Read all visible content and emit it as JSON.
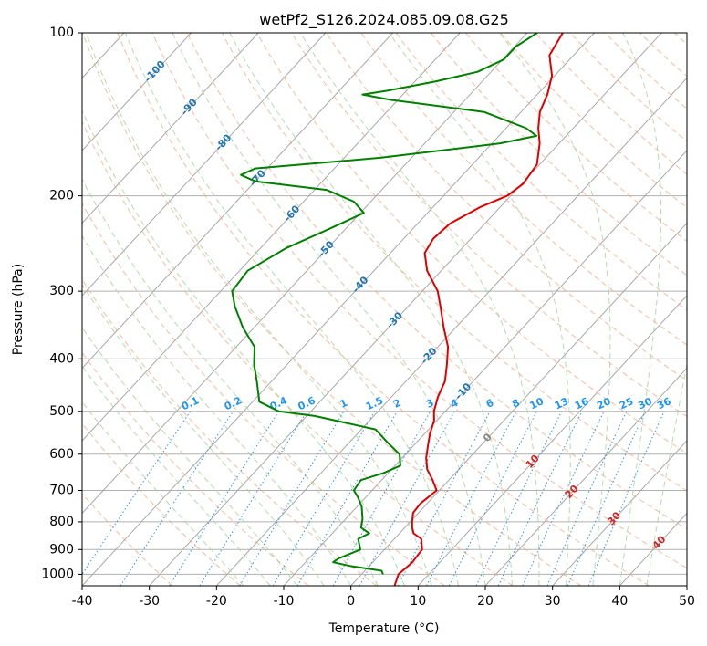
{
  "chart_data": {
    "type": "line",
    "subtype": "skew-t log-p diagram",
    "title": "wetPf2_S126.2024.085.09.08.G25",
    "xlabel": "Temperature (°C)",
    "ylabel": "Pressure (hPa)",
    "xlim": [
      -40,
      50
    ],
    "ylim_hPa": [
      1050,
      100
    ],
    "y_scale": "log",
    "grid": true,
    "x_ticks": [
      -40,
      -30,
      -20,
      -10,
      0,
      10,
      20,
      30,
      40,
      50
    ],
    "y_ticks": [
      100,
      200,
      300,
      400,
      500,
      600,
      700,
      800,
      900,
      1000
    ],
    "isotherm_labels": [
      "-100",
      "-90",
      "-80",
      "-70",
      "-60",
      "-50",
      "-40",
      "-30",
      "-20",
      "-10",
      "0",
      "10",
      "20",
      "30",
      "40"
    ],
    "mixing_ratio_labels": [
      "0.1",
      "0.2",
      "0.4",
      "0.6",
      "1",
      "1.5",
      "2",
      "3",
      "4",
      "6",
      "8",
      "10",
      "13",
      "16",
      "20",
      "25",
      "30",
      "36"
    ],
    "series": [
      {
        "role": "temperature",
        "color": "#e00000",
        "points": [
          [
            1050,
            6.5
          ],
          [
            1000,
            5.5
          ],
          [
            950,
            5.9
          ],
          [
            900,
            5.6
          ],
          [
            860,
            4.0
          ],
          [
            840,
            2.1
          ],
          [
            820,
            1.1
          ],
          [
            800,
            0.3
          ],
          [
            770,
            -0.8
          ],
          [
            740,
            -1.0
          ],
          [
            700,
            -0.4
          ],
          [
            670,
            -2.4
          ],
          [
            640,
            -4.7
          ],
          [
            610,
            -6.4
          ],
          [
            580,
            -7.8
          ],
          [
            550,
            -9.2
          ],
          [
            520,
            -10.4
          ],
          [
            500,
            -11.7
          ],
          [
            470,
            -13.1
          ],
          [
            440,
            -14.2
          ],
          [
            410,
            -16.2
          ],
          [
            380,
            -18.5
          ],
          [
            350,
            -21.8
          ],
          [
            320,
            -25.2
          ],
          [
            300,
            -27.7
          ],
          [
            275,
            -32.1
          ],
          [
            255,
            -34.9
          ],
          [
            240,
            -35.6
          ],
          [
            225,
            -35.2
          ],
          [
            210,
            -33.0
          ],
          [
            200,
            -30.5
          ],
          [
            190,
            -29.8
          ],
          [
            175,
            -30.4
          ],
          [
            160,
            -32.9
          ],
          [
            150,
            -35.2
          ],
          [
            140,
            -37.2
          ],
          [
            130,
            -38.5
          ],
          [
            120,
            -40.4
          ],
          [
            110,
            -43.6
          ],
          [
            100,
            -44.7
          ]
        ]
      },
      {
        "role": "dewpoint",
        "color": "#008000",
        "points": [
          [
            1000,
            3.2
          ],
          [
            985,
            2.5
          ],
          [
            965,
            -2.9
          ],
          [
            950,
            -5.9
          ],
          [
            935,
            -5.6
          ],
          [
            900,
            -3.6
          ],
          [
            860,
            -5.4
          ],
          [
            840,
            -4.5
          ],
          [
            820,
            -6.5
          ],
          [
            790,
            -7.5
          ],
          [
            750,
            -9.3
          ],
          [
            720,
            -11.2
          ],
          [
            700,
            -12.7
          ],
          [
            670,
            -13.1
          ],
          [
            650,
            -10.7
          ],
          [
            630,
            -9.2
          ],
          [
            600,
            -10.9
          ],
          [
            570,
            -14.4
          ],
          [
            540,
            -17.9
          ],
          [
            510,
            -28.8
          ],
          [
            500,
            -34.8
          ],
          [
            480,
            -39.0
          ],
          [
            440,
            -42.2
          ],
          [
            410,
            -44.9
          ],
          [
            380,
            -47.3
          ],
          [
            350,
            -51.7
          ],
          [
            320,
            -55.8
          ],
          [
            300,
            -58.3
          ],
          [
            275,
            -58.8
          ],
          [
            250,
            -56.2
          ],
          [
            230,
            -52.4
          ],
          [
            215,
            -49.5
          ],
          [
            205,
            -52.5
          ],
          [
            195,
            -58.2
          ],
          [
            188,
            -70.0
          ],
          [
            183,
            -73.0
          ],
          [
            178,
            -71.8
          ],
          [
            170,
            -54.5
          ],
          [
            160,
            -38.8
          ],
          [
            155,
            -34.4
          ],
          [
            150,
            -37.0
          ],
          [
            140,
            -45.5
          ],
          [
            133,
            -61.0
          ],
          [
            130,
            -66.0
          ],
          [
            128,
            -63.0
          ],
          [
            123,
            -57.0
          ],
          [
            118,
            -52.0
          ],
          [
            112,
            -49.8
          ],
          [
            106,
            -49.8
          ],
          [
            100,
            -48.5
          ]
        ]
      }
    ]
  }
}
